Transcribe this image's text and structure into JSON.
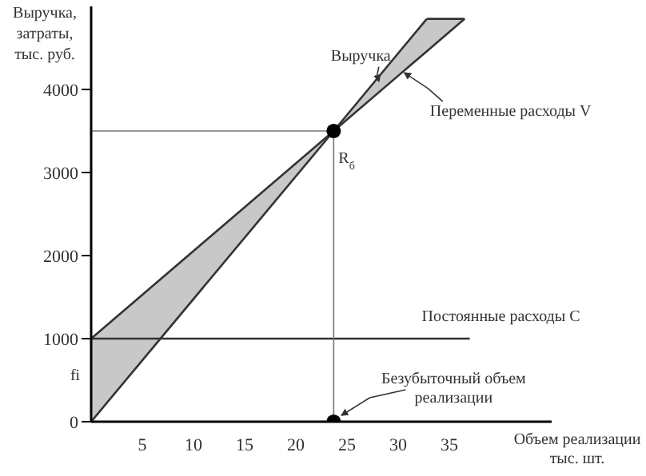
{
  "chart_data": {
    "type": "line",
    "xlabel": "Объем реализации тыс. шт.",
    "ylabel": "Выручка, затраты, тыс. руб.",
    "xlim": [
      0,
      45
    ],
    "ylim": [
      0,
      5000
    ],
    "xticks": [
      5,
      10,
      15,
      20,
      25,
      30,
      35
    ],
    "yticks": [
      0,
      1000,
      2000,
      3000,
      4000
    ],
    "series": [
      {
        "color": "#333333",
        "x": [
          0,
          23.7,
          32.8
        ],
        "values": [
          0,
          3500,
          4850
        ]
      },
      {
        "color": "#333333",
        "x": [
          0,
          23.7,
          32.8,
          36.5
        ],
        "values": [
          1000,
          3500,
          4460,
          4850
        ],
        "lower": [
          0,
          3500,
          4460,
          4850
        ],
        "upper": [
          1000,
          3500,
          4850,
          4850
        ]
      },
      {
        "color": "#333333",
        "x": [
          32.8,
          36.5
        ],
        "values": [
          4850,
          4850
        ]
      },
      {
        "color": "#333333",
        "x": [
          0,
          37
        ],
        "values": [
          1000,
          1000
        ]
      },
      {
        "type": "scatter",
        "color": "#000000",
        "x": [
          23.7,
          23.7
        ],
        "values": [
          3500,
          0
        ],
        "marker": "circle"
      }
    ],
    "ref_lines": [
      {
        "axis": "y",
        "value": 3500,
        "color": "#777777"
      },
      {
        "axis": "x",
        "value": 23.7,
        "color": "#777777"
      }
    ],
    "annotations": [
      {
        "text": "Выручка",
        "x": 27.8,
        "y": 4100
      },
      {
        "text": "Переменные расходы V",
        "x": 30.3,
        "y": 4200
      },
      {
        "text": "Постоянные расходы C",
        "x": 37,
        "y": 1000
      },
      {
        "text": "Безубыточный объем реализации",
        "x": 23.7,
        "y": 0
      },
      {
        "text": "R$_{б}$",
        "x": 23.7,
        "y": 3500
      },
      "fi"
    ]
  }
}
